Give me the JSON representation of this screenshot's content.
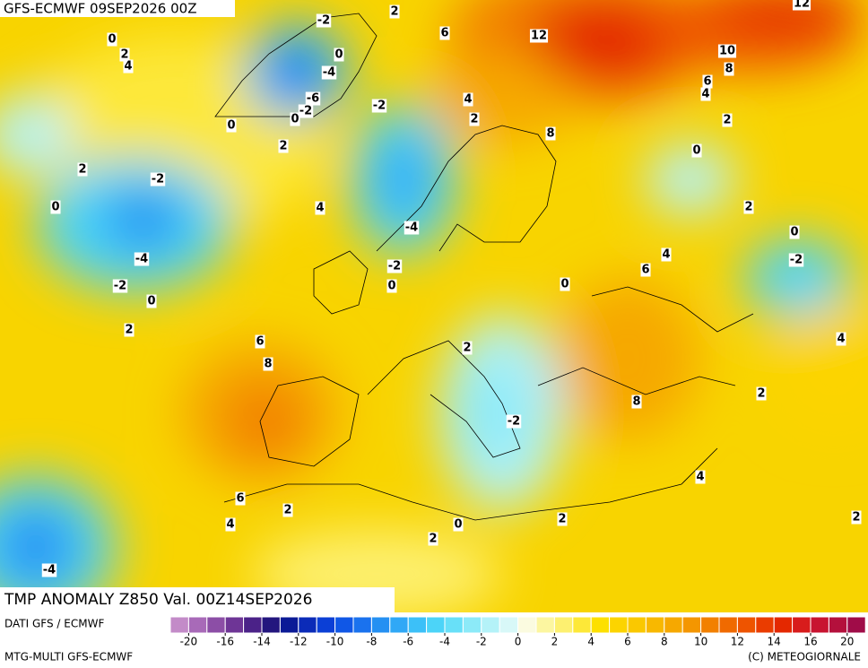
{
  "header": {
    "title": "GFS-ECMWF 09SEP2026 00Z"
  },
  "footer": {
    "title": "TMP ANOMALY Z850 Val. 00Z14SEP2026",
    "source": "DATI GFS / ECMWF",
    "model": "MTG-MULTI GFS-ECMWF",
    "credit": "(C) METEOGIORNALE"
  },
  "contour_labels": [
    "-2",
    "2",
    "0",
    "2",
    "4",
    "0",
    "-4",
    "-6",
    "-2",
    "0",
    "0",
    "6",
    "12",
    "12",
    "10",
    "8",
    "6",
    "4",
    "4",
    "2",
    "-2",
    "2",
    "8",
    "2",
    "0",
    "2",
    "-2",
    "0",
    "4",
    "2",
    "-4",
    "0",
    "-4",
    "-2",
    "4",
    "-2",
    "6",
    "-2",
    "0",
    "0",
    "0",
    "2",
    "6",
    "4",
    "8",
    "2",
    "2",
    "8",
    "-2",
    "4",
    "6",
    "2",
    "4",
    "2",
    "2",
    "0",
    "2",
    "-4"
  ],
  "colorbar": {
    "colors": [
      "#c38bc8",
      "#a86ab8",
      "#8c4ea6",
      "#6e3596",
      "#4b2288",
      "#23167e",
      "#0b1a96",
      "#0b2bb8",
      "#0b3fd6",
      "#1057e6",
      "#1a72ee",
      "#2590f2",
      "#30a8f6",
      "#3cc0f8",
      "#4cd4f8",
      "#68e0f8",
      "#8ceaf8",
      "#b4f2f8",
      "#d8f8f8",
      "#fbfbe0",
      "#fcf6a0",
      "#fdf070",
      "#fde838",
      "#fde000",
      "#fcd400",
      "#fac800",
      "#f8b800",
      "#f6a800",
      "#f49600",
      "#f28000",
      "#f06a00",
      "#ee5400",
      "#ea3c00",
      "#e42800",
      "#d81c1c",
      "#c81430",
      "#b4103c",
      "#a00c48"
    ],
    "labels": [
      -20,
      -16,
      -14,
      -12,
      -10,
      -8,
      -6,
      -4,
      -2,
      0,
      2,
      4,
      6,
      8,
      10,
      12,
      14,
      16,
      20
    ]
  }
}
